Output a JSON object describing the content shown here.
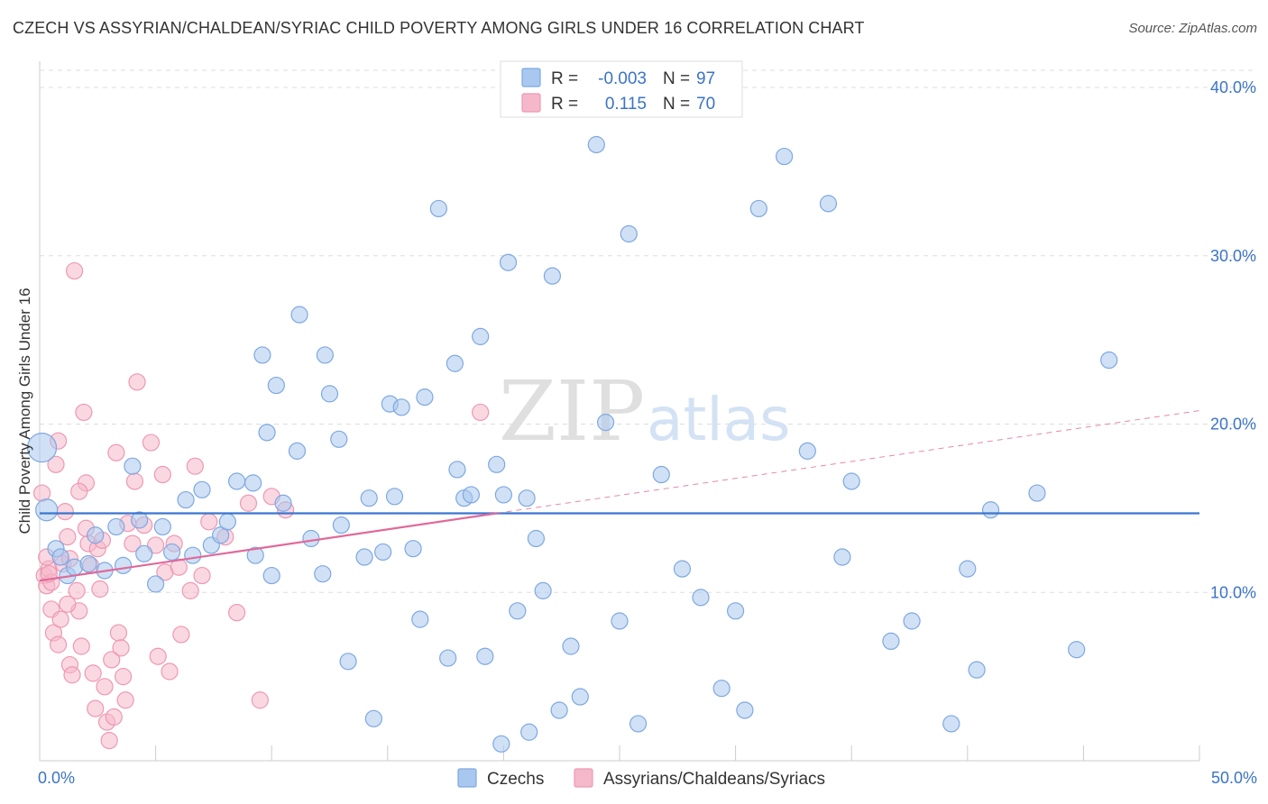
{
  "title": "CZECH VS ASSYRIAN/CHALDEAN/SYRIAC CHILD POVERTY AMONG GIRLS UNDER 16 CORRELATION CHART",
  "source": "Source: ZipAtlas.com",
  "watermark": {
    "zip": "ZIP",
    "atlas": "atlas"
  },
  "colors": {
    "blue_fill": "#a9c8ef",
    "blue_stroke": "#7ea8e0",
    "blue_line": "#3a76d0",
    "pink_fill": "#f5b8cb",
    "pink_stroke": "#ee98b3",
    "pink_line": "#e0699a",
    "tick_blue": "#3b74c4",
    "grid": "#dddddd"
  },
  "legend": {
    "rows": [
      {
        "r_label": "R =",
        "r_value": "-0.003",
        "n_label": "N =",
        "n_value": "97",
        "color": "blue"
      },
      {
        "r_label": "R =",
        "r_value": "0.115",
        "n_label": "N =",
        "n_value": "70",
        "color": "pink"
      }
    ]
  },
  "chart_data": {
    "type": "scatter",
    "title": "CZECH VS ASSYRIAN/CHALDEAN/SYRIAC CHILD POVERTY AMONG GIRLS UNDER 16 CORRELATION CHART",
    "xlabel": "",
    "ylabel": "Child Poverty Among Girls Under 16",
    "xlim": [
      0,
      50
    ],
    "ylim": [
      0,
      40
    ],
    "x_tick_labels": [
      "0.0%",
      "50.0%"
    ],
    "y_ticks": [
      10,
      20,
      30,
      40
    ],
    "y_tick_labels": [
      "10.0%",
      "20.0%",
      "30.0%",
      "40.0%"
    ],
    "grid": "horizontal dashed",
    "legend_position": "top-center",
    "series": [
      {
        "name": "Czechs",
        "color": "blue",
        "trend": {
          "x": [
            0,
            50
          ],
          "y": [
            14.7,
            14.7
          ],
          "style": "solid"
        },
        "points": [
          [
            0.1,
            18.6
          ],
          [
            0.3,
            14.9
          ],
          [
            0.7,
            12.6
          ],
          [
            0.9,
            12.1
          ],
          [
            1.2,
            11.0
          ],
          [
            1.5,
            11.5
          ],
          [
            2.1,
            11.7
          ],
          [
            2.4,
            13.4
          ],
          [
            2.8,
            11.3
          ],
          [
            3.3,
            13.9
          ],
          [
            3.6,
            11.6
          ],
          [
            4.0,
            17.5
          ],
          [
            4.3,
            14.3
          ],
          [
            4.5,
            12.3
          ],
          [
            5.0,
            10.5
          ],
          [
            5.3,
            13.9
          ],
          [
            5.7,
            12.4
          ],
          [
            6.3,
            15.5
          ],
          [
            6.6,
            12.2
          ],
          [
            7.0,
            16.1
          ],
          [
            7.4,
            12.8
          ],
          [
            7.8,
            13.4
          ],
          [
            8.1,
            14.2
          ],
          [
            8.5,
            16.6
          ],
          [
            9.2,
            16.5
          ],
          [
            9.3,
            12.2
          ],
          [
            9.6,
            24.1
          ],
          [
            9.8,
            19.5
          ],
          [
            10.0,
            11.0
          ],
          [
            10.2,
            22.3
          ],
          [
            10.5,
            15.3
          ],
          [
            11.1,
            18.4
          ],
          [
            11.2,
            26.5
          ],
          [
            11.7,
            13.2
          ],
          [
            12.2,
            11.1
          ],
          [
            12.3,
            24.1
          ],
          [
            12.5,
            21.8
          ],
          [
            12.9,
            19.1
          ],
          [
            13.0,
            14.0
          ],
          [
            13.3,
            5.9
          ],
          [
            14.0,
            12.1
          ],
          [
            14.2,
            15.6
          ],
          [
            14.4,
            2.5
          ],
          [
            14.8,
            12.4
          ],
          [
            15.1,
            21.2
          ],
          [
            15.3,
            15.7
          ],
          [
            15.6,
            21.0
          ],
          [
            16.1,
            12.6
          ],
          [
            16.4,
            8.4
          ],
          [
            16.6,
            21.6
          ],
          [
            17.2,
            32.8
          ],
          [
            17.6,
            6.1
          ],
          [
            17.9,
            23.6
          ],
          [
            18.0,
            17.3
          ],
          [
            18.3,
            15.6
          ],
          [
            18.6,
            15.8
          ],
          [
            19.0,
            25.2
          ],
          [
            19.2,
            6.2
          ],
          [
            19.7,
            17.6
          ],
          [
            19.9,
            1.0
          ],
          [
            20.0,
            15.8
          ],
          [
            20.2,
            29.6
          ],
          [
            20.6,
            8.9
          ],
          [
            21.0,
            15.6
          ],
          [
            21.1,
            1.7
          ],
          [
            21.4,
            13.2
          ],
          [
            22.1,
            28.8
          ],
          [
            22.4,
            3.0
          ],
          [
            22.9,
            6.8
          ],
          [
            23.3,
            3.8
          ],
          [
            24.0,
            36.6
          ],
          [
            24.4,
            20.1
          ],
          [
            25.0,
            8.3
          ],
          [
            25.4,
            31.3
          ],
          [
            25.8,
            2.2
          ],
          [
            27.7,
            11.4
          ],
          [
            28.5,
            9.7
          ],
          [
            29.4,
            4.3
          ],
          [
            30.0,
            8.9
          ],
          [
            30.4,
            3.0
          ],
          [
            31.0,
            32.8
          ],
          [
            32.1,
            35.9
          ],
          [
            33.1,
            18.4
          ],
          [
            34.0,
            33.1
          ],
          [
            34.6,
            12.1
          ],
          [
            35.0,
            16.6
          ],
          [
            36.7,
            7.1
          ],
          [
            37.6,
            8.3
          ],
          [
            39.3,
            2.2
          ],
          [
            40.0,
            11.4
          ],
          [
            40.4,
            5.4
          ],
          [
            43.0,
            15.9
          ],
          [
            44.7,
            6.6
          ],
          [
            46.1,
            23.8
          ],
          [
            41.0,
            14.9
          ],
          [
            26.8,
            17.0
          ],
          [
            21.7,
            10.1
          ]
        ]
      },
      {
        "name": "Assyrians/Chaldeans/Syriacs",
        "color": "pink",
        "trend": {
          "x": [
            0,
            19.7
          ],
          "y": [
            10.7,
            14.7
          ],
          "style": "solid",
          "extended_to": [
            50,
            20.8
          ],
          "extended_style": "dashed"
        },
        "points": [
          [
            0.1,
            15.9
          ],
          [
            0.2,
            11.0
          ],
          [
            0.3,
            10.4
          ],
          [
            0.4,
            11.4
          ],
          [
            0.5,
            10.6
          ],
          [
            0.5,
            9.0
          ],
          [
            0.6,
            7.6
          ],
          [
            0.7,
            17.6
          ],
          [
            0.8,
            19.0
          ],
          [
            0.9,
            8.4
          ],
          [
            1.0,
            11.7
          ],
          [
            1.1,
            14.8
          ],
          [
            1.2,
            13.3
          ],
          [
            1.3,
            5.7
          ],
          [
            1.4,
            5.1
          ],
          [
            1.5,
            29.1
          ],
          [
            1.6,
            10.1
          ],
          [
            1.7,
            8.9
          ],
          [
            1.8,
            6.8
          ],
          [
            1.9,
            20.7
          ],
          [
            2.0,
            16.5
          ],
          [
            2.1,
            12.9
          ],
          [
            2.2,
            11.6
          ],
          [
            2.3,
            5.2
          ],
          [
            2.4,
            3.1
          ],
          [
            2.5,
            12.6
          ],
          [
            2.6,
            10.2
          ],
          [
            2.7,
            13.1
          ],
          [
            2.8,
            4.4
          ],
          [
            2.9,
            2.3
          ],
          [
            3.0,
            1.2
          ],
          [
            3.1,
            6.0
          ],
          [
            3.2,
            2.6
          ],
          [
            3.3,
            18.3
          ],
          [
            3.4,
            7.6
          ],
          [
            3.5,
            6.7
          ],
          [
            3.6,
            5.0
          ],
          [
            3.7,
            3.6
          ],
          [
            3.8,
            14.1
          ],
          [
            4.0,
            12.9
          ],
          [
            4.1,
            16.6
          ],
          [
            4.2,
            22.5
          ],
          [
            4.5,
            14.0
          ],
          [
            4.8,
            18.9
          ],
          [
            5.0,
            12.8
          ],
          [
            5.1,
            6.2
          ],
          [
            5.3,
            17.0
          ],
          [
            5.4,
            11.2
          ],
          [
            5.6,
            5.3
          ],
          [
            5.8,
            12.9
          ],
          [
            6.0,
            11.5
          ],
          [
            6.1,
            7.5
          ],
          [
            6.5,
            10.1
          ],
          [
            6.7,
            17.5
          ],
          [
            7.0,
            11.0
          ],
          [
            7.3,
            14.2
          ],
          [
            8.0,
            13.3
          ],
          [
            8.5,
            8.8
          ],
          [
            9.0,
            15.3
          ],
          [
            9.5,
            3.6
          ],
          [
            10.0,
            15.7
          ],
          [
            10.6,
            14.9
          ],
          [
            19.0,
            20.7
          ],
          [
            0.3,
            12.1
          ],
          [
            1.2,
            9.3
          ],
          [
            0.8,
            6.9
          ],
          [
            2.0,
            13.8
          ],
          [
            0.4,
            11.1
          ],
          [
            1.7,
            16.0
          ],
          [
            1.3,
            12.0
          ]
        ]
      }
    ]
  },
  "bottom_legend": [
    {
      "label": "Czechs",
      "color": "blue"
    },
    {
      "label": "Assyrians/Chaldeans/Syriacs",
      "color": "pink"
    }
  ]
}
